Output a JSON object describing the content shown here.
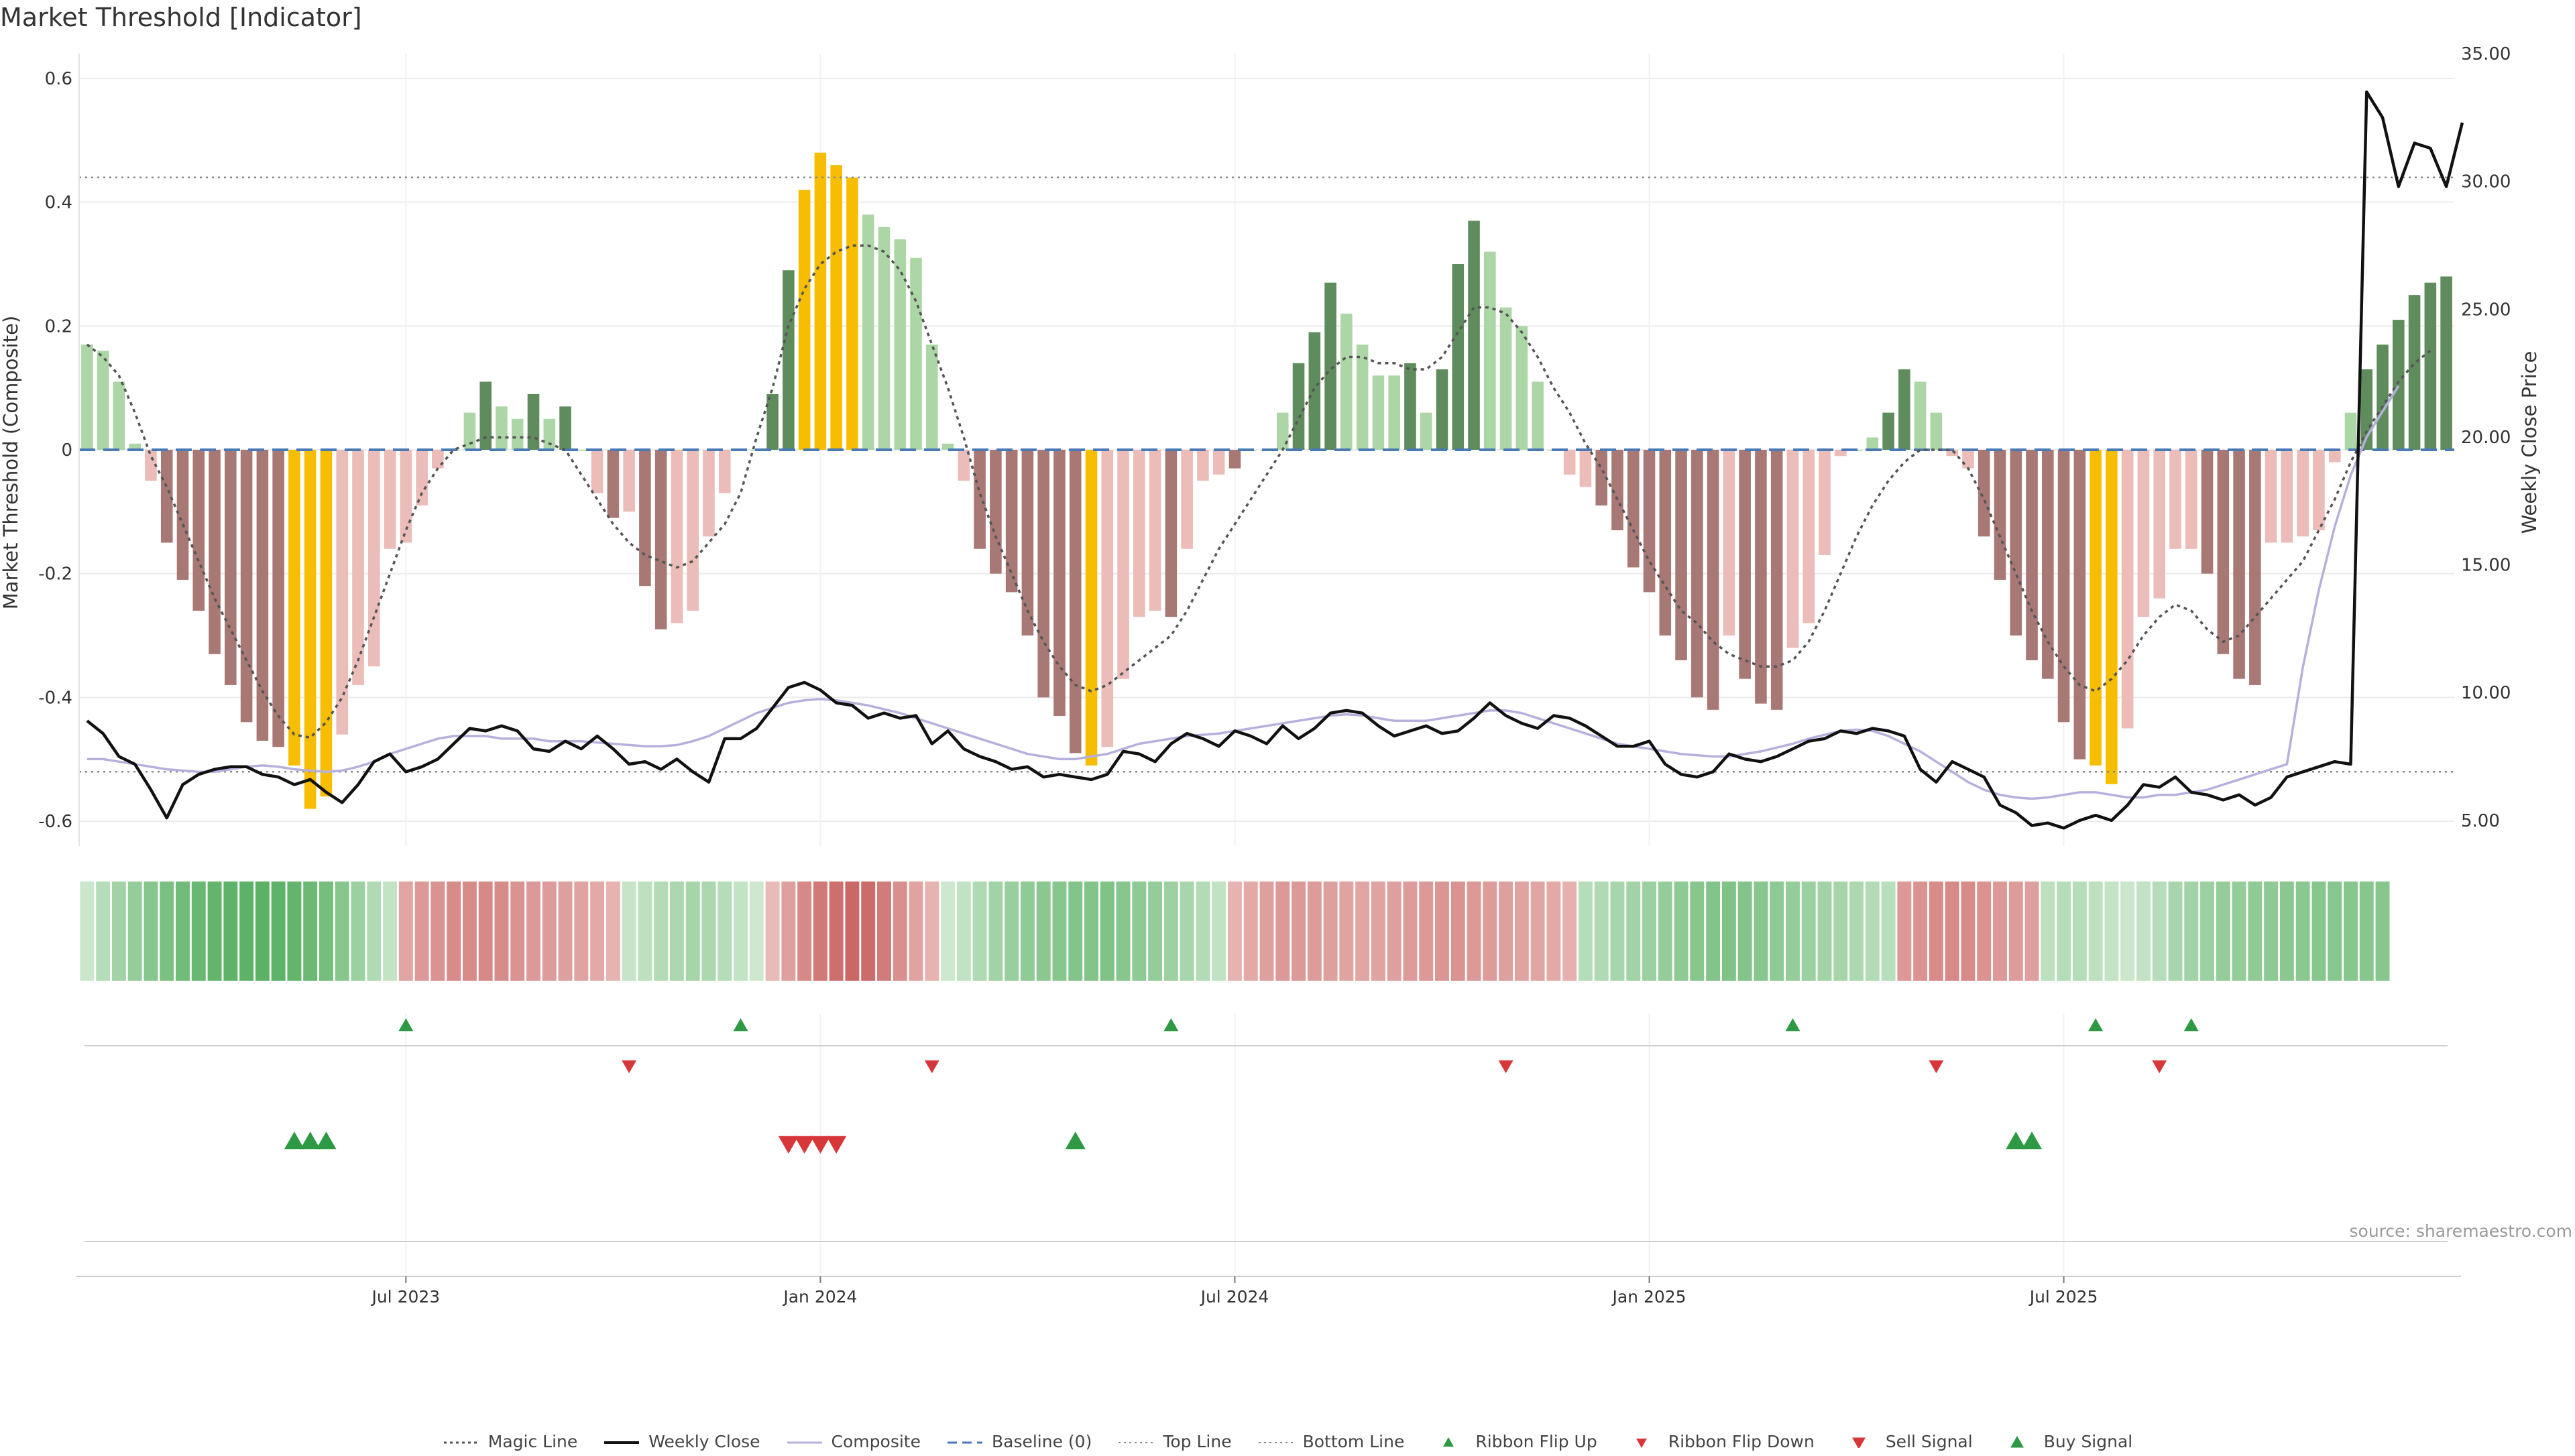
{
  "title": "Market Threshold [Indicator]",
  "source_note": "source: sharemaestro.com",
  "colors": {
    "bar_strong_up": "#5e8c5c",
    "bar_light_up": "#acd6a5",
    "bar_strong_down": "#a87874",
    "bar_light_down": "#ebbcb8",
    "bar_extreme": "#f7bd00",
    "magic_line": "#555555",
    "weekly_close": "#111111",
    "composite": "#b6b0dc",
    "baseline": "#4a7ab5",
    "ref_lines": "#888888",
    "signal_up": "#2e9944",
    "signal_down": "#d8373a"
  },
  "legend": [
    {
      "label": "Magic Line",
      "symbol": "dotted-line"
    },
    {
      "label": "Weekly Close",
      "symbol": "solid-line"
    },
    {
      "label": "Composite",
      "symbol": "composite-line"
    },
    {
      "label": "Baseline (0)",
      "symbol": "dashed-line"
    },
    {
      "label": "Top Line",
      "symbol": "thin-dotted-line"
    },
    {
      "label": "Bottom Line",
      "symbol": "thin-dotted-line"
    },
    {
      "label": "Ribbon Flip Up",
      "symbol": "small-triangle-up"
    },
    {
      "label": "Ribbon Flip Down",
      "symbol": "small-triangle-down"
    },
    {
      "label": "Sell Signal",
      "symbol": "triangle-down"
    },
    {
      "label": "Buy Signal",
      "symbol": "triangle-up"
    }
  ],
  "chart_data": {
    "type": "bar",
    "ylabel": "Market Threshold (Composite)",
    "y2label": "Weekly Close Price",
    "ylim": [
      -0.64,
      0.64
    ],
    "y2lim": [
      4.0,
      35.0
    ],
    "yticks": [
      "-0.6",
      "-0.4",
      "-0.2",
      "0",
      "0.2",
      "0.4",
      "0.6"
    ],
    "y2ticks": [
      "5.00",
      "10.00",
      "15.00",
      "20.00",
      "25.00",
      "30.00",
      "35.00"
    ],
    "xticks": [
      {
        "label": "Jul 2023",
        "week": 20
      },
      {
        "label": "Jan 2024",
        "week": 46
      },
      {
        "label": "Jul 2024",
        "week": 72
      },
      {
        "label": "Jan 2025",
        "week": 98
      },
      {
        "label": "Jul 2025",
        "week": 124
      }
    ],
    "top_line": 0.44,
    "bottom_line": -0.52,
    "baseline": 0,
    "composite": [
      0.17,
      0.16,
      0.11,
      0.01,
      -0.05,
      -0.15,
      -0.21,
      -0.26,
      -0.33,
      -0.38,
      -0.44,
      -0.47,
      -0.48,
      -0.51,
      -0.58,
      -0.56,
      -0.46,
      -0.38,
      -0.35,
      -0.16,
      -0.15,
      -0.09,
      -0.03,
      0.0,
      0.06,
      0.11,
      0.07,
      0.05,
      0.09,
      0.05,
      0.07,
      0.0,
      -0.07,
      -0.11,
      -0.1,
      -0.22,
      -0.29,
      -0.28,
      -0.26,
      -0.14,
      -0.07,
      0.0,
      0.0,
      0.09,
      0.29,
      0.42,
      0.48,
      0.46,
      0.44,
      0.38,
      0.36,
      0.34,
      0.31,
      0.17,
      0.01,
      -0.05,
      -0.16,
      -0.2,
      -0.23,
      -0.3,
      -0.4,
      -0.43,
      -0.49,
      -0.51,
      -0.48,
      -0.37,
      -0.27,
      -0.26,
      -0.27,
      -0.16,
      -0.05,
      -0.04,
      -0.03,
      0.0,
      0.0,
      0.06,
      0.14,
      0.19,
      0.27,
      0.22,
      0.17,
      0.12,
      0.12,
      0.14,
      0.06,
      0.13,
      0.3,
      0.37,
      0.32,
      0.23,
      0.2,
      0.11,
      0.0,
      -0.04,
      -0.06,
      -0.09,
      -0.13,
      -0.19,
      -0.23,
      -0.3,
      -0.34,
      -0.4,
      -0.42,
      -0.3,
      -0.37,
      -0.41,
      -0.42,
      -0.32,
      -0.28,
      -0.17,
      -0.01,
      0.0,
      0.02,
      0.06,
      0.13,
      0.11,
      0.06,
      -0.01,
      -0.03,
      -0.14,
      -0.21,
      -0.3,
      -0.34,
      -0.37,
      -0.44,
      -0.5,
      -0.51,
      -0.54,
      -0.45,
      -0.27,
      -0.24,
      -0.16,
      -0.16,
      -0.2,
      -0.33,
      -0.37,
      -0.38,
      -0.15,
      -0.15,
      -0.14,
      -0.13,
      -0.02,
      0.06,
      0.13,
      0.17,
      0.21,
      0.25,
      0.27,
      0.28
    ],
    "bar_class": [
      "light_up",
      "light_up",
      "light_up",
      "light_up",
      "light_down",
      "strong_down",
      "strong_down",
      "strong_down",
      "strong_down",
      "strong_down",
      "strong_down",
      "strong_down",
      "strong_down",
      "extreme",
      "extreme",
      "extreme",
      "light_down",
      "light_down",
      "light_down",
      "light_down",
      "light_down",
      "light_down",
      "light_down",
      "light_up",
      "light_up",
      "strong_up",
      "light_up",
      "light_up",
      "strong_up",
      "light_up",
      "strong_up",
      "light_up",
      "light_down",
      "strong_down",
      "light_down",
      "strong_down",
      "strong_down",
      "light_down",
      "light_down",
      "light_down",
      "light_down",
      "light_up",
      "light_up",
      "strong_up",
      "strong_up",
      "extreme",
      "extreme",
      "extreme",
      "extreme",
      "light_up",
      "light_up",
      "light_up",
      "light_up",
      "light_up",
      "light_up",
      "light_down",
      "strong_down",
      "strong_down",
      "strong_down",
      "strong_down",
      "strong_down",
      "strong_down",
      "strong_down",
      "extreme",
      "light_down",
      "light_down",
      "light_down",
      "light_down",
      "strong_down",
      "light_down",
      "light_down",
      "light_down",
      "strong_down",
      "light_up",
      "light_up",
      "light_up",
      "strong_up",
      "strong_up",
      "strong_up",
      "light_up",
      "light_up",
      "light_up",
      "light_up",
      "strong_up",
      "light_up",
      "strong_up",
      "strong_up",
      "strong_up",
      "light_up",
      "light_up",
      "light_up",
      "light_up",
      "light_up",
      "light_down",
      "light_down",
      "strong_down",
      "strong_down",
      "strong_down",
      "strong_down",
      "strong_down",
      "strong_down",
      "strong_down",
      "strong_down",
      "light_down",
      "strong_down",
      "strong_down",
      "strong_down",
      "light_down",
      "light_down",
      "light_down",
      "light_down",
      "light_up",
      "light_up",
      "strong_up",
      "strong_up",
      "light_up",
      "light_up",
      "light_down",
      "light_down",
      "strong_down",
      "strong_down",
      "strong_down",
      "strong_down",
      "strong_down",
      "strong_down",
      "strong_down",
      "extreme",
      "extreme",
      "light_down",
      "light_down",
      "light_down",
      "light_down",
      "light_down",
      "strong_down",
      "strong_down",
      "strong_down",
      "strong_down",
      "light_down",
      "light_down",
      "light_down",
      "light_down",
      "light_down",
      "light_up",
      "strong_up",
      "strong_up",
      "strong_up",
      "strong_up",
      "strong_up",
      "strong_up"
    ],
    "magic_line": [
      0.17,
      0.15,
      0.12,
      0.06,
      -0.01,
      -0.06,
      -0.12,
      -0.18,
      -0.24,
      -0.29,
      -0.34,
      -0.39,
      -0.43,
      -0.46,
      -0.465,
      -0.44,
      -0.4,
      -0.34,
      -0.27,
      -0.2,
      -0.13,
      -0.07,
      -0.03,
      0.0,
      0.01,
      0.02,
      0.02,
      0.02,
      0.02,
      0.01,
      0.0,
      -0.04,
      -0.08,
      -0.12,
      -0.15,
      -0.17,
      -0.18,
      -0.19,
      -0.18,
      -0.15,
      -0.12,
      -0.07,
      0.02,
      0.1,
      0.2,
      0.26,
      0.3,
      0.32,
      0.33,
      0.33,
      0.32,
      0.29,
      0.24,
      0.17,
      0.1,
      0.02,
      -0.07,
      -0.14,
      -0.2,
      -0.26,
      -0.31,
      -0.35,
      -0.38,
      -0.39,
      -0.38,
      -0.36,
      -0.34,
      -0.32,
      -0.3,
      -0.26,
      -0.21,
      -0.16,
      -0.12,
      -0.08,
      -0.04,
      0.0,
      0.05,
      0.1,
      0.13,
      0.15,
      0.15,
      0.14,
      0.14,
      0.13,
      0.13,
      0.15,
      0.19,
      0.23,
      0.23,
      0.22,
      0.19,
      0.15,
      0.1,
      0.06,
      0.01,
      -0.03,
      -0.08,
      -0.13,
      -0.18,
      -0.22,
      -0.26,
      -0.28,
      -0.31,
      -0.33,
      -0.34,
      -0.35,
      -0.35,
      -0.34,
      -0.31,
      -0.26,
      -0.2,
      -0.14,
      -0.09,
      -0.05,
      -0.02,
      0.0,
      0.0,
      0.0,
      -0.03,
      -0.08,
      -0.14,
      -0.2,
      -0.26,
      -0.31,
      -0.35,
      -0.38,
      -0.39,
      -0.37,
      -0.34,
      -0.3,
      -0.27,
      -0.25,
      -0.26,
      -0.29,
      -0.31,
      -0.3,
      -0.27,
      -0.24,
      -0.21,
      -0.18,
      -0.13,
      -0.08,
      -0.02,
      0.03,
      0.07,
      0.11,
      0.14,
      0.16
    ],
    "weekly_close": [
      8.9,
      8.4,
      7.5,
      7.2,
      6.2,
      5.1,
      6.4,
      6.8,
      7.0,
      7.1,
      7.1,
      6.8,
      6.7,
      6.4,
      6.6,
      6.1,
      5.7,
      6.4,
      7.3,
      7.6,
      6.9,
      7.1,
      7.4,
      8.0,
      8.6,
      8.5,
      8.7,
      8.5,
      7.8,
      7.7,
      8.1,
      7.8,
      8.3,
      7.8,
      7.2,
      7.3,
      7.0,
      7.4,
      6.9,
      6.5,
      8.2,
      8.2,
      8.6,
      9.4,
      10.2,
      10.4,
      10.1,
      9.6,
      9.5,
      9.0,
      9.2,
      9.0,
      9.1,
      8.0,
      8.5,
      7.8,
      7.5,
      7.3,
      7.0,
      7.1,
      6.7,
      6.8,
      6.7,
      6.6,
      6.8,
      7.7,
      7.6,
      7.3,
      8.0,
      8.4,
      8.2,
      7.9,
      8.5,
      8.3,
      8.0,
      8.7,
      8.2,
      8.6,
      9.2,
      9.3,
      9.2,
      8.7,
      8.3,
      8.5,
      8.7,
      8.4,
      8.5,
      9.0,
      9.6,
      9.1,
      8.8,
      8.6,
      9.1,
      9.0,
      8.7,
      8.3,
      7.9,
      7.9,
      8.1,
      7.2,
      6.8,
      6.7,
      6.9,
      7.6,
      7.4,
      7.3,
      7.5,
      7.8,
      8.1,
      8.2,
      8.5,
      8.4,
      8.6,
      8.5,
      8.3,
      7.0,
      6.5,
      7.3,
      7.0,
      6.7,
      5.6,
      5.3,
      4.8,
      4.9,
      4.7,
      5.0,
      5.2,
      5.0,
      5.6,
      6.4,
      6.3,
      6.7,
      6.1,
      6.0,
      5.8,
      6.0,
      5.6,
      5.9,
      6.7,
      6.9,
      7.1,
      7.3,
      7.2,
      33.5,
      32.5,
      29.8,
      31.5,
      31.3,
      29.8,
      32.3
    ],
    "composite_line": [
      7.4,
      7.4,
      7.3,
      7.2,
      7.1,
      7.0,
      6.95,
      6.9,
      6.9,
      7.0,
      7.1,
      7.15,
      7.1,
      7.0,
      6.95,
      6.9,
      6.95,
      7.1,
      7.3,
      7.6,
      7.8,
      8.0,
      8.2,
      8.3,
      8.3,
      8.3,
      8.2,
      8.2,
      8.2,
      8.1,
      8.1,
      8.1,
      8.05,
      8.0,
      7.95,
      7.9,
      7.9,
      7.95,
      8.1,
      8.3,
      8.6,
      8.9,
      9.2,
      9.4,
      9.6,
      9.7,
      9.75,
      9.7,
      9.6,
      9.5,
      9.35,
      9.2,
      9.0,
      8.8,
      8.6,
      8.4,
      8.2,
      8.0,
      7.8,
      7.6,
      7.5,
      7.4,
      7.4,
      7.5,
      7.6,
      7.8,
      8.0,
      8.1,
      8.2,
      8.3,
      8.35,
      8.4,
      8.5,
      8.6,
      8.7,
      8.8,
      8.9,
      9.0,
      9.1,
      9.15,
      9.1,
      9.0,
      8.9,
      8.9,
      8.9,
      9.0,
      9.1,
      9.2,
      9.3,
      9.3,
      9.2,
      9.0,
      8.8,
      8.6,
      8.4,
      8.2,
      8.0,
      7.9,
      7.8,
      7.7,
      7.6,
      7.55,
      7.5,
      7.5,
      7.6,
      7.7,
      7.85,
      8.0,
      8.2,
      8.35,
      8.5,
      8.55,
      8.5,
      8.3,
      8.0,
      7.7,
      7.3,
      6.9,
      6.5,
      6.2,
      6.0,
      5.9,
      5.85,
      5.9,
      6.0,
      6.1,
      6.1,
      6.0,
      5.9,
      5.9,
      6.0,
      6.0,
      6.1,
      6.2,
      6.4,
      6.6,
      6.8,
      7.0,
      7.2,
      11.0,
      14.0,
      16.5,
      18.5,
      20.0,
      21.0,
      22.0
    ],
    "ribbon": [
      0.15,
      0.3,
      0.45,
      0.55,
      0.65,
      0.75,
      0.82,
      0.88,
      0.92,
      0.95,
      0.97,
      0.98,
      0.96,
      0.92,
      0.86,
      0.78,
      0.65,
      0.5,
      0.35,
      0.2,
      -0.4,
      -0.5,
      -0.55,
      -0.6,
      -0.6,
      -0.62,
      -0.6,
      -0.55,
      -0.5,
      -0.48,
      -0.45,
      -0.42,
      -0.38,
      -0.3,
      0.18,
      0.25,
      0.32,
      0.38,
      0.42,
      0.38,
      0.3,
      0.2,
      0.12,
      -0.25,
      -0.45,
      -0.62,
      -0.75,
      -0.82,
      -0.88,
      -0.85,
      -0.72,
      -0.58,
      -0.42,
      -0.3,
      0.12,
      0.22,
      0.35,
      0.45,
      0.52,
      0.58,
      0.62,
      0.65,
      0.68,
      0.68,
      0.7,
      0.65,
      0.6,
      0.55,
      0.48,
      0.4,
      0.32,
      0.22,
      -0.3,
      -0.38,
      -0.45,
      -0.5,
      -0.5,
      -0.48,
      -0.45,
      -0.42,
      -0.4,
      -0.42,
      -0.45,
      -0.48,
      -0.5,
      -0.52,
      -0.55,
      -0.5,
      -0.48,
      -0.45,
      -0.42,
      -0.4,
      -0.38,
      -0.32,
      0.3,
      0.35,
      0.4,
      0.45,
      0.5,
      0.55,
      0.6,
      0.65,
      0.68,
      0.7,
      0.68,
      0.65,
      0.6,
      0.55,
      0.5,
      0.45,
      0.42,
      0.38,
      0.32,
      0.28,
      -0.5,
      -0.55,
      -0.6,
      -0.62,
      -0.6,
      -0.55,
      -0.5,
      -0.48,
      -0.45,
      0.25,
      0.3,
      0.3,
      0.25,
      0.2,
      0.15,
      0.2,
      0.3,
      0.4,
      0.45,
      0.5,
      0.55,
      0.55,
      0.58,
      0.6,
      0.62,
      0.62,
      0.65,
      0.65,
      0.65,
      0.65,
      0.65
    ],
    "signals": {
      "ribbon_flip_up": [
        20,
        41,
        68,
        107,
        126,
        132
      ],
      "ribbon_flip_down": [
        34,
        53,
        89,
        116,
        130
      ],
      "buy": [
        13,
        14,
        15,
        62,
        121,
        122
      ],
      "sell": [
        44,
        45,
        46,
        47
      ]
    }
  }
}
